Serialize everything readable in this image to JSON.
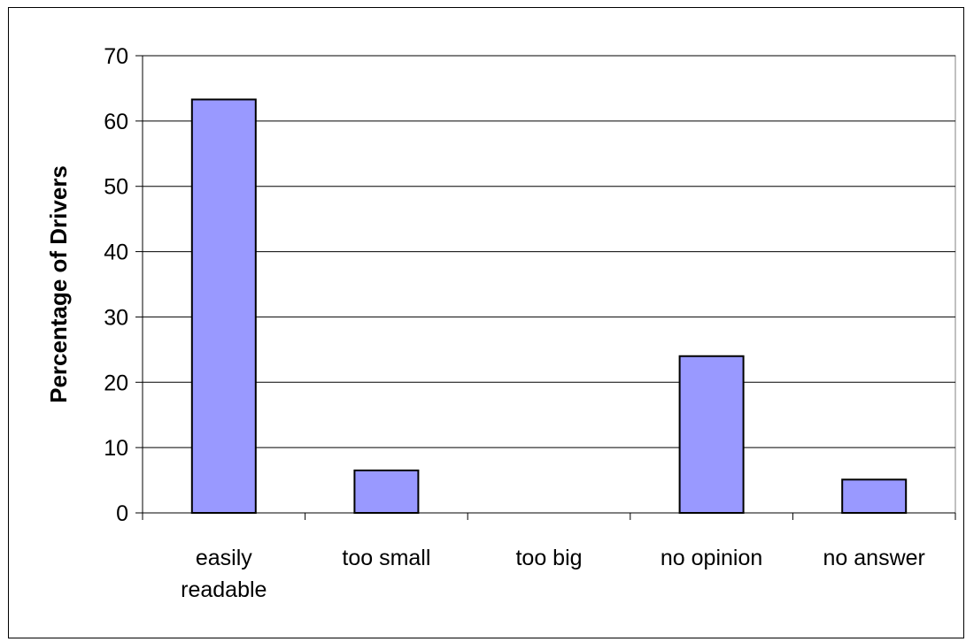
{
  "chart_data": {
    "type": "bar",
    "categories": [
      [
        "easily",
        "readable"
      ],
      [
        "too small"
      ],
      [
        "too big"
      ],
      [
        "no opinion"
      ],
      [
        "no answer"
      ]
    ],
    "values": [
      63.3,
      6.5,
      0,
      24,
      5.1
    ],
    "ylabel": "Percentage of Drivers",
    "ylim": [
      0,
      70
    ],
    "yticks": [
      0,
      10,
      20,
      30,
      40,
      50,
      60,
      70
    ],
    "grid": true,
    "colors": {
      "bar": "#9999ff",
      "bar_stroke": "#000000",
      "grid": "#000000",
      "plot_border": "#808080"
    }
  }
}
